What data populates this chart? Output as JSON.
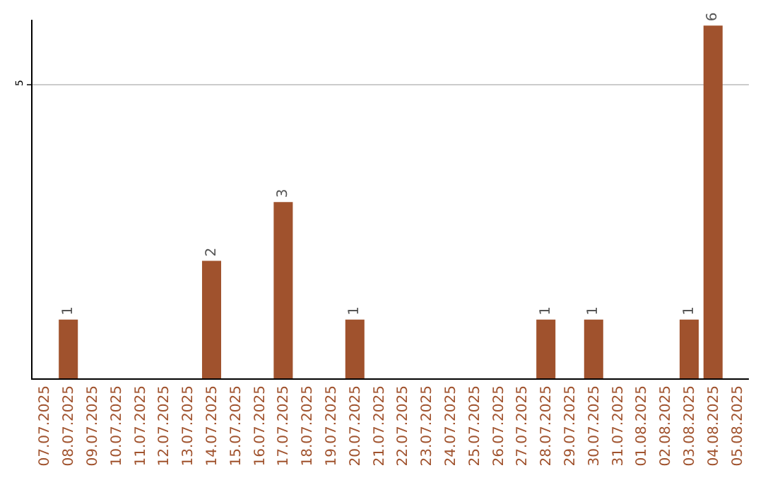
{
  "chart_data": {
    "type": "bar",
    "categories": [
      "07.07.2025",
      "08.07.2025",
      "09.07.2025",
      "10.07.2025",
      "11.07.2025",
      "12.07.2025",
      "13.07.2025",
      "14.07.2025",
      "15.07.2025",
      "16.07.2025",
      "17.07.2025",
      "18.07.2025",
      "19.07.2025",
      "20.07.2025",
      "21.07.2025",
      "22.07.2025",
      "23.07.2025",
      "24.07.2025",
      "25.07.2025",
      "26.07.2025",
      "27.07.2025",
      "28.07.2025",
      "29.07.2025",
      "30.07.2025",
      "31.07.2025",
      "01.08.2025",
      "02.08.2025",
      "03.08.2025",
      "04.08.2025",
      "05.08.2025"
    ],
    "values": [
      0,
      1,
      0,
      0,
      0,
      0,
      0,
      2,
      0,
      0,
      3,
      0,
      0,
      1,
      0,
      0,
      0,
      0,
      0,
      0,
      0,
      1,
      0,
      1,
      0,
      0,
      0,
      1,
      6,
      0
    ],
    "value_labels": [
      null,
      "1",
      null,
      null,
      null,
      null,
      null,
      "2",
      null,
      null,
      "3",
      null,
      null,
      "1",
      null,
      null,
      null,
      null,
      null,
      null,
      null,
      "1",
      null,
      "1",
      null,
      null,
      null,
      "1",
      "6",
      null
    ],
    "color": "#a0522d",
    "ylim": [
      0,
      6.1
    ],
    "yticks": [
      5
    ],
    "grid": "y",
    "legend": false
  }
}
